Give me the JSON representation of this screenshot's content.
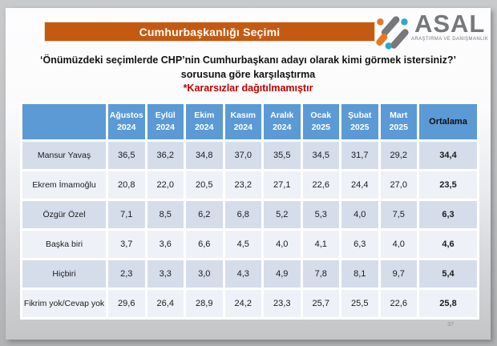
{
  "banner": {
    "title": "Cumhurbaşkanlığı Seçimi"
  },
  "logo": {
    "name": "ASAL",
    "subtitle": "ARAŞTIRMA VE DANIŞMANLIK"
  },
  "question": {
    "line1": "‘Önümüzdeki seçimlerde CHP’nin Cumhurbaşkanı adayı olarak kimi görmek istersiniz?’",
    "line2": "sorusuna göre karşılaştırma",
    "note": "*Kararsızlar dağıtılmamıştır"
  },
  "page_number": "37",
  "colors": {
    "banner_bg": "#C45A11",
    "header_bg": "#5B9AD5",
    "band_dark": "#D5DDEB",
    "band_light": "#EEF1F8",
    "note_red": "#C00000",
    "logo_gray": "#77787B",
    "logo_orange": "#E87722",
    "logo_teal": "#2FA8C8"
  },
  "chart_data": {
    "type": "table",
    "title": "Cumhurbaşkanlığı Seçimi",
    "subtitle": "‘Önümüzdeki seçimlerde CHP’nin Cumhurbaşkanı adayı olarak kimi görmek istersiniz?’ sorusuna göre karşılaştırma",
    "note": "*Kararsızlar dağıtılmamıştır",
    "value_format": "comma-decimal-percent",
    "columns": [
      {
        "month": "Ağustos",
        "year": "2024"
      },
      {
        "month": "Eylül",
        "year": "2024"
      },
      {
        "month": "Ekim",
        "year": "2024"
      },
      {
        "month": "Kasım",
        "year": "2024"
      },
      {
        "month": "Aralık",
        "year": "2024"
      },
      {
        "month": "Ocak",
        "year": "2025"
      },
      {
        "month": "Şubat",
        "year": "2025"
      },
      {
        "month": "Mart",
        "year": "2025"
      }
    ],
    "average_column_label": "Ortalama",
    "rows": [
      {
        "label": "Mansur Yavaş",
        "values": [
          36.5,
          36.2,
          34.8,
          37.0,
          35.5,
          34.5,
          31.7,
          29.2
        ],
        "average": 34.4
      },
      {
        "label": "Ekrem İmamoğlu",
        "values": [
          20.8,
          22.0,
          20.5,
          23.2,
          27.1,
          22.6,
          24.4,
          27.0
        ],
        "average": 23.5
      },
      {
        "label": "Özgür Özel",
        "values": [
          7.1,
          8.5,
          6.2,
          6.8,
          5.2,
          5.3,
          4.0,
          7.5
        ],
        "average": 6.3
      },
      {
        "label": "Başka biri",
        "values": [
          3.7,
          3.6,
          6.6,
          4.5,
          4.0,
          4.1,
          6.3,
          4.0
        ],
        "average": 4.6
      },
      {
        "label": "Hiçbiri",
        "values": [
          2.3,
          3.3,
          3.0,
          4.3,
          4.9,
          7.8,
          8.1,
          9.7
        ],
        "average": 5.4
      },
      {
        "label": "Fikrim yok/Cevap yok",
        "values": [
          29.6,
          26.4,
          28.9,
          24.2,
          23.3,
          25.7,
          25.5,
          22.6
        ],
        "average": 25.8
      }
    ]
  }
}
